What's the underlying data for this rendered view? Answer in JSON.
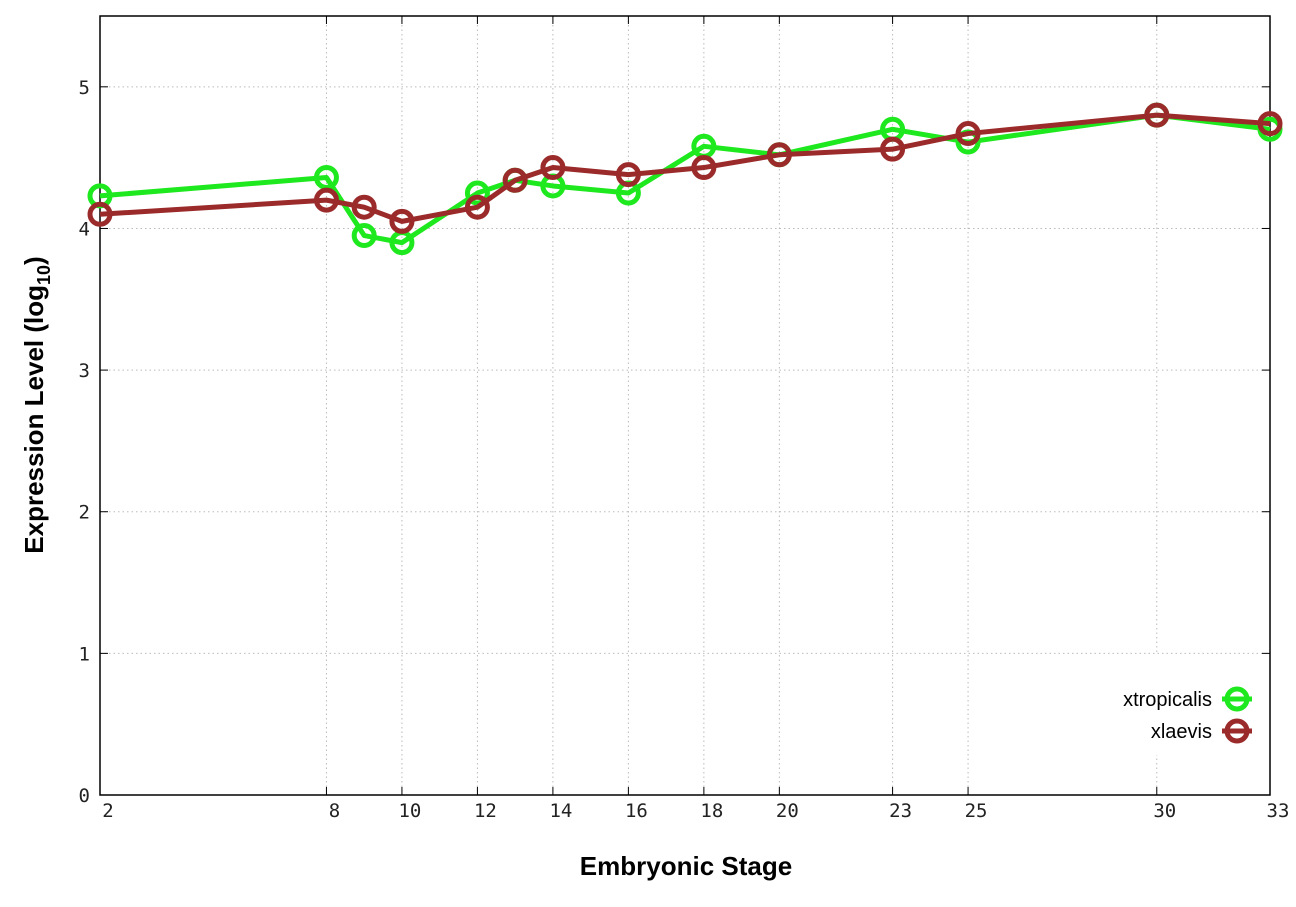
{
  "chart_data": {
    "type": "line",
    "title": "",
    "xlabel": "Embryonic Stage",
    "ylabel_main": "Expression Level (log",
    "ylabel_sub": "10",
    "ylabel_close": ")",
    "xlim": [
      2,
      33
    ],
    "ylim": [
      0,
      5.5
    ],
    "x_ticks": [
      2,
      8,
      10,
      12,
      14,
      16,
      18,
      20,
      23,
      25,
      30,
      33
    ],
    "y_ticks": [
      0,
      1,
      2,
      3,
      4,
      5
    ],
    "grid": true,
    "legend_position": "bottom-right",
    "x": [
      2,
      8,
      9,
      10,
      12,
      13,
      14,
      16,
      18,
      20,
      23,
      25,
      30,
      33
    ],
    "series": [
      {
        "name": "xtropicalis",
        "color": "#1ee81e",
        "marker": "open-circle",
        "values": [
          4.23,
          4.36,
          3.95,
          3.9,
          4.25,
          4.34,
          4.3,
          4.25,
          4.58,
          4.52,
          4.7,
          4.61,
          4.8,
          4.7
        ]
      },
      {
        "name": "xlaevis",
        "color": "#9b2a2a",
        "marker": "open-circle",
        "values": [
          4.1,
          4.2,
          4.15,
          4.05,
          4.15,
          4.34,
          4.43,
          4.38,
          4.43,
          4.52,
          4.56,
          4.67,
          4.8,
          4.74
        ]
      }
    ]
  }
}
